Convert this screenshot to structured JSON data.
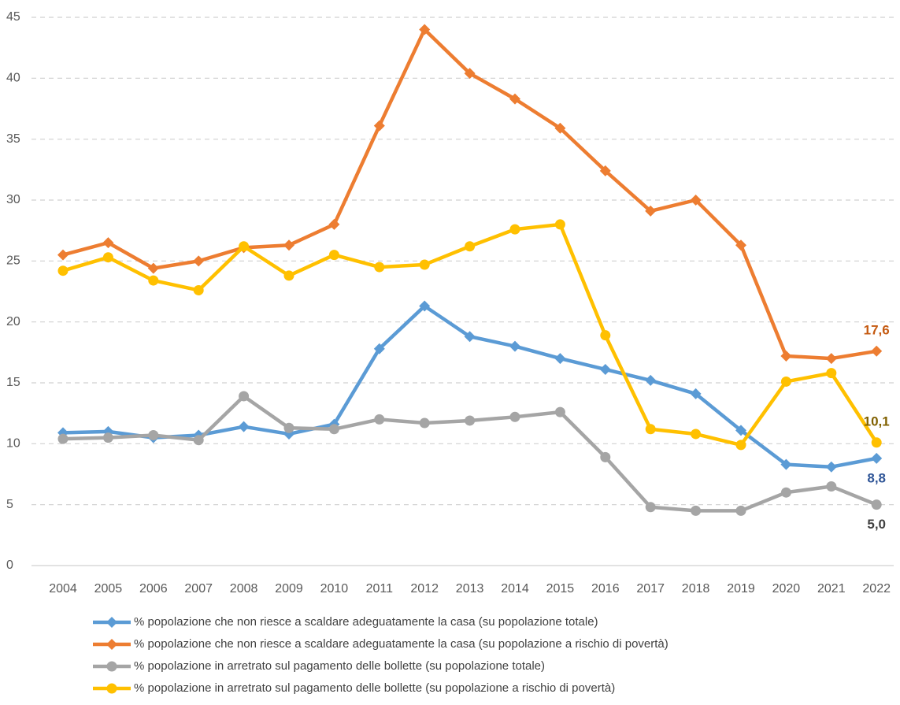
{
  "chart_data": {
    "type": "line",
    "categories": [
      "2004",
      "2005",
      "2006",
      "2007",
      "2008",
      "2009",
      "2010",
      "2011",
      "2012",
      "2013",
      "2014",
      "2015",
      "2016",
      "2017",
      "2018",
      "2019",
      "2020",
      "2021",
      "2022"
    ],
    "ylim": [
      0,
      45
    ],
    "yticks": [
      0,
      5,
      10,
      15,
      20,
      25,
      30,
      35,
      40,
      45
    ],
    "grid": true,
    "legend": "bottom",
    "series": [
      {
        "name": "% popolazione che non riesce a scaldare adeguatamente la casa (su popolazione totale)",
        "color": "#5b9bd5",
        "marker": "diamond",
        "label_color": "#2f5597",
        "label_position": "below",
        "values": [
          10.9,
          11.0,
          10.5,
          10.7,
          11.4,
          10.8,
          11.6,
          17.8,
          21.3,
          18.8,
          18.0,
          17.0,
          16.1,
          15.2,
          14.1,
          11.1,
          8.3,
          8.1,
          8.8
        ],
        "value_labels": [
          null,
          null,
          null,
          null,
          null,
          null,
          null,
          null,
          null,
          null,
          null,
          null,
          null,
          null,
          null,
          null,
          null,
          null,
          "8,8"
        ]
      },
      {
        "name": "% popolazione che non riesce a scaldare adeguatamente la casa (su popolazione a rischio di povertà)",
        "color": "#ed7d31",
        "marker": "diamond",
        "label_color": "#c55a11",
        "label_position": "above",
        "values": [
          25.5,
          26.5,
          24.4,
          25.0,
          26.1,
          26.3,
          28.0,
          36.1,
          44.0,
          40.4,
          38.3,
          35.9,
          32.4,
          29.1,
          30.0,
          26.3,
          17.2,
          17.0,
          17.6
        ],
        "value_labels": [
          null,
          null,
          null,
          null,
          null,
          null,
          null,
          null,
          null,
          null,
          null,
          null,
          null,
          null,
          null,
          null,
          null,
          null,
          "17,6"
        ]
      },
      {
        "name": "% popolazione in arretrato sul pagamento delle bollette (su popolazione totale)",
        "color": "#a5a5a5",
        "marker": "circle",
        "label_color": "#404040",
        "label_position": "below",
        "values": [
          10.4,
          10.5,
          10.7,
          10.3,
          13.9,
          11.3,
          11.2,
          12.0,
          11.7,
          11.9,
          12.2,
          12.6,
          8.9,
          4.8,
          4.5,
          4.5,
          6.0,
          6.5,
          5.0
        ],
        "value_labels": [
          null,
          null,
          null,
          null,
          null,
          null,
          null,
          null,
          null,
          null,
          null,
          null,
          null,
          null,
          null,
          null,
          null,
          null,
          "5,0"
        ]
      },
      {
        "name": "% popolazione in arretrato sul pagamento delle bollette (su popolazione a rischio di povertà)",
        "color": "#ffc000",
        "marker": "circle",
        "label_color": "#806000",
        "label_position": "above",
        "values": [
          24.2,
          25.3,
          23.4,
          22.6,
          26.2,
          23.8,
          25.5,
          24.5,
          24.7,
          26.2,
          27.6,
          28.0,
          18.9,
          11.2,
          10.8,
          9.9,
          15.1,
          15.8,
          10.1
        ],
        "value_labels": [
          null,
          null,
          null,
          null,
          null,
          null,
          null,
          null,
          null,
          null,
          null,
          null,
          null,
          null,
          null,
          null,
          null,
          null,
          "10,1"
        ]
      }
    ]
  }
}
